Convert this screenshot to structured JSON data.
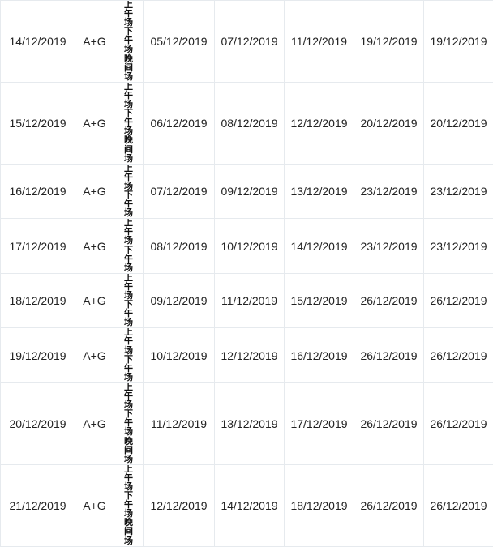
{
  "rows": [
    {
      "date": "14/12/2019",
      "group": "A+G",
      "sessions": "上午场下午场晚间场",
      "d1": "05/12/2019",
      "d2": "07/12/2019",
      "d3": "11/12/2019",
      "d4": "19/12/2019",
      "d5": "19/12/2019"
    },
    {
      "date": "15/12/2019",
      "group": "A+G",
      "sessions": "上午场下午场晚间场",
      "d1": "06/12/2019",
      "d2": "08/12/2019",
      "d3": "12/12/2019",
      "d4": "20/12/2019",
      "d5": "20/12/2019"
    },
    {
      "date": "16/12/2019",
      "group": "A+G",
      "sessions": "上午场下午场",
      "d1": "07/12/2019",
      "d2": "09/12/2019",
      "d3": "13/12/2019",
      "d4": "23/12/2019",
      "d5": "23/12/2019"
    },
    {
      "date": "17/12/2019",
      "group": "A+G",
      "sessions": "上午场下午场",
      "d1": "08/12/2019",
      "d2": "10/12/2019",
      "d3": "14/12/2019",
      "d4": "23/12/2019",
      "d5": "23/12/2019"
    },
    {
      "date": "18/12/2019",
      "group": "A+G",
      "sessions": "上午场下午场",
      "d1": "09/12/2019",
      "d2": "11/12/2019",
      "d3": "15/12/2019",
      "d4": "26/12/2019",
      "d5": "26/12/2019"
    },
    {
      "date": "19/12/2019",
      "group": "A+G",
      "sessions": "上午场下午场",
      "d1": "10/12/2019",
      "d2": "12/12/2019",
      "d3": "16/12/2019",
      "d4": "26/12/2019",
      "d5": "26/12/2019"
    },
    {
      "date": "20/12/2019",
      "group": "A+G",
      "sessions": "上午场下午场晚间场",
      "d1": "11/12/2019",
      "d2": "13/12/2019",
      "d3": "17/12/2019",
      "d4": "26/12/2019",
      "d5": "26/12/2019"
    },
    {
      "date": "21/12/2019",
      "group": "A+G",
      "sessions": "上午场下午场晚间场",
      "d1": "12/12/2019",
      "d2": "14/12/2019",
      "d3": "18/12/2019",
      "d4": "26/12/2019",
      "d5": "26/12/2019"
    }
  ]
}
